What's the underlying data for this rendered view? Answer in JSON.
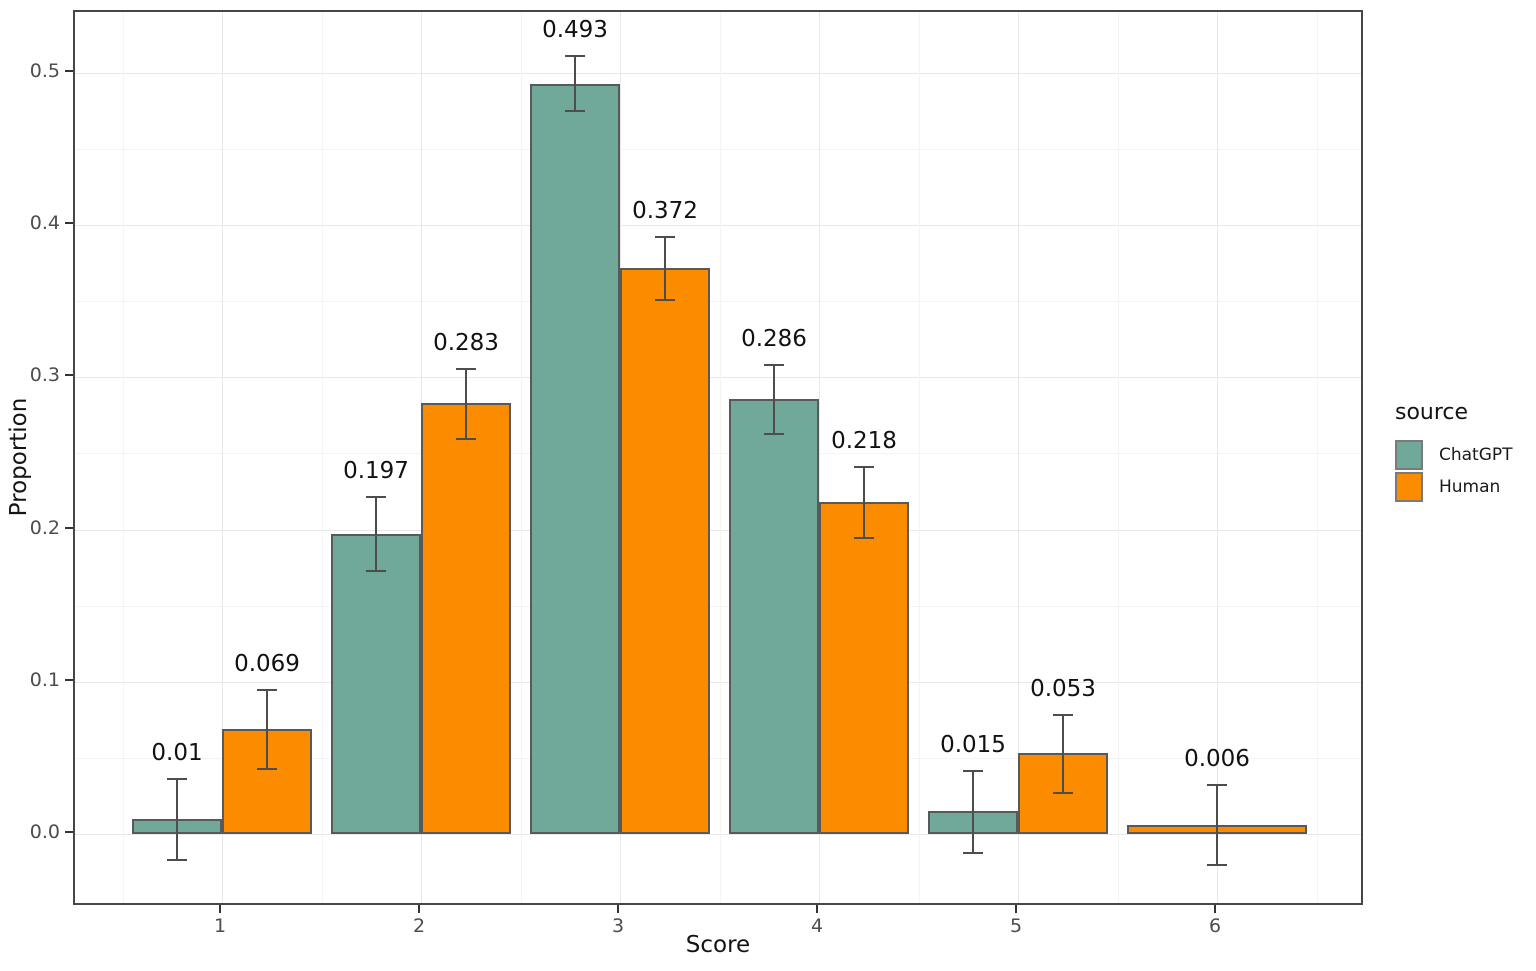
{
  "chart_data": {
    "type": "bar",
    "title": "",
    "xlabel": "Score",
    "ylabel": "Proportion",
    "categories": [
      "1",
      "2",
      "3",
      "4",
      "5",
      "6"
    ],
    "series": [
      {
        "name": "ChatGPT",
        "color": "#70A89A",
        "values": [
          0.01,
          0.197,
          0.493,
          0.286,
          0.015,
          null
        ],
        "ci_low": [
          -0.018,
          0.172,
          0.474,
          0.262,
          -0.013,
          null
        ],
        "ci_high": [
          0.037,
          0.222,
          0.512,
          0.309,
          0.042,
          null
        ],
        "labels": [
          "0.01",
          "0.197",
          "0.493",
          "0.286",
          "0.015",
          null
        ]
      },
      {
        "name": "Human",
        "color": "#FB8C00",
        "values": [
          0.069,
          0.283,
          0.372,
          0.218,
          0.053,
          0.006
        ],
        "ci_low": [
          0.042,
          0.259,
          0.35,
          0.194,
          0.026,
          -0.021
        ],
        "ci_high": [
          0.095,
          0.306,
          0.393,
          0.242,
          0.079,
          0.033
        ],
        "labels": [
          "0.069",
          "0.283",
          "0.372",
          "0.218",
          "0.053",
          "0.006"
        ]
      }
    ],
    "ylim": [
      -0.048,
      0.54
    ],
    "yticks": [
      0.0,
      0.1,
      0.2,
      0.3,
      0.4,
      0.5
    ],
    "ytick_labels": [
      "0.0",
      "0.1",
      "0.2",
      "0.3",
      "0.4",
      "0.5"
    ],
    "grid": true,
    "legend": {
      "title": "source",
      "position": "right",
      "entries": [
        {
          "label": "ChatGPT",
          "color": "#70A89A"
        },
        {
          "label": "Human",
          "color": "#FB8C00"
        }
      ]
    }
  },
  "colors": {
    "bar_border": "#595959",
    "errorbar": "#4D4D4D",
    "grid_major": "#E8E8E8",
    "grid_minor": "#F4F4F4",
    "panel_border": "#474747",
    "axis_tick": "#333333",
    "tick_label": "#4D4D4D",
    "value_label": "#111111"
  }
}
